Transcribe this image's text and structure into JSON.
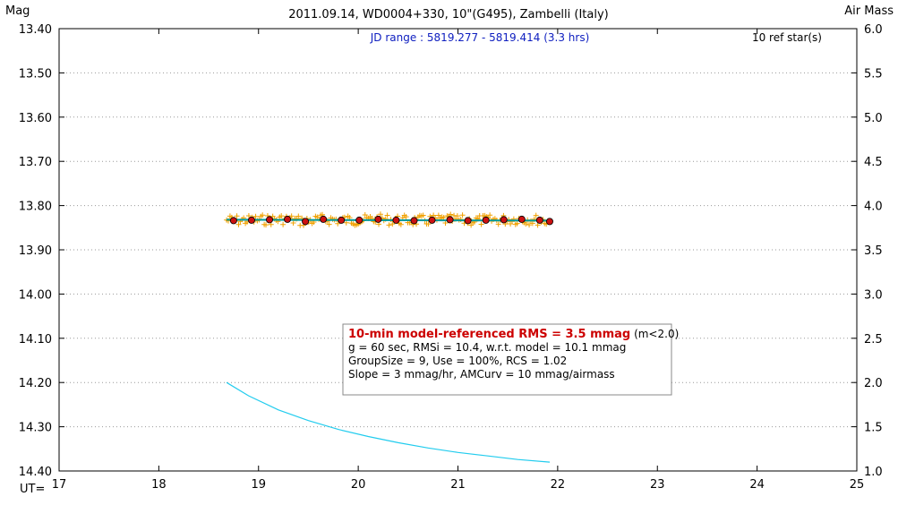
{
  "chart_data": {
    "type": "scatter",
    "title": "2011.09.14, WD0004+330, 10\"(G495), Zambelli (Italy)",
    "jd_range_text": "JD range : 5819.277 - 5819.414 (3.3 hrs)",
    "ref_stars_text": "10 ref star(s)",
    "left_axis_label": "Mag",
    "right_axis_label": "Air Mass",
    "x_axis_label": "UT=",
    "xlim": [
      17,
      25
    ],
    "ylim_left": [
      13.4,
      14.4
    ],
    "ylim_left_inverted": true,
    "ylim_right": [
      1.0,
      6.0
    ],
    "grid": "horizontal-dotted",
    "x_ticks": [
      "17",
      "18",
      "19",
      "20",
      "21",
      "22",
      "23",
      "24",
      "25"
    ],
    "y_left_ticks": [
      "13.40",
      "13.50",
      "13.60",
      "13.70",
      "13.80",
      "13.90",
      "14.00",
      "14.10",
      "14.20",
      "14.30",
      "14.40"
    ],
    "y_right_ticks": [
      "6.0",
      "5.5",
      "5.0",
      "4.5",
      "4.0",
      "3.5",
      "3.0",
      "2.5",
      "2.0",
      "1.5",
      "1.0"
    ],
    "stats_box": {
      "line1_bold": "10-min model-referenced RMS = 3.5 mmag",
      "line1_rest": " (m<2.0)",
      "line2": "g = 60 sec, RMSi = 10.4, w.r.t. model = 10.1 mmag",
      "line3": "GroupSize = 9, Use = 100%, RCS = 1.02",
      "line4": "Slope = 3 mmag/hr, AMCurv = 10 mmag/airmass"
    },
    "colors": {
      "raw_points": "#f0a000",
      "group_means": "#cc1111",
      "model_line": "#009999",
      "airmass_curve": "#22ccee",
      "stats_highlight": "#cc0000",
      "jd_text": "#1020c0"
    },
    "series": [
      {
        "kind": "group-means",
        "x": [
          18.75,
          18.93,
          19.11,
          19.29,
          19.47,
          19.65,
          19.83,
          20.01,
          20.2,
          20.38,
          20.56,
          20.74,
          20.92,
          21.1,
          21.28,
          21.46,
          21.64,
          21.82,
          21.92
        ],
        "y": [
          13.834,
          13.833,
          13.832,
          13.831,
          13.836,
          13.831,
          13.833,
          13.833,
          13.831,
          13.833,
          13.834,
          13.833,
          13.832,
          13.834,
          13.833,
          13.832,
          13.831,
          13.833,
          13.836
        ]
      },
      {
        "kind": "model",
        "x": [
          18.68,
          21.92
        ],
        "y": [
          13.832,
          13.834
        ]
      },
      {
        "kind": "airmass",
        "x": [
          18.68,
          18.9,
          19.2,
          19.5,
          19.8,
          20.1,
          20.4,
          20.7,
          21.0,
          21.3,
          21.6,
          21.92
        ],
        "y": [
          2.0,
          1.85,
          1.69,
          1.57,
          1.47,
          1.39,
          1.32,
          1.26,
          1.21,
          1.17,
          1.13,
          1.1
        ]
      }
    ]
  }
}
